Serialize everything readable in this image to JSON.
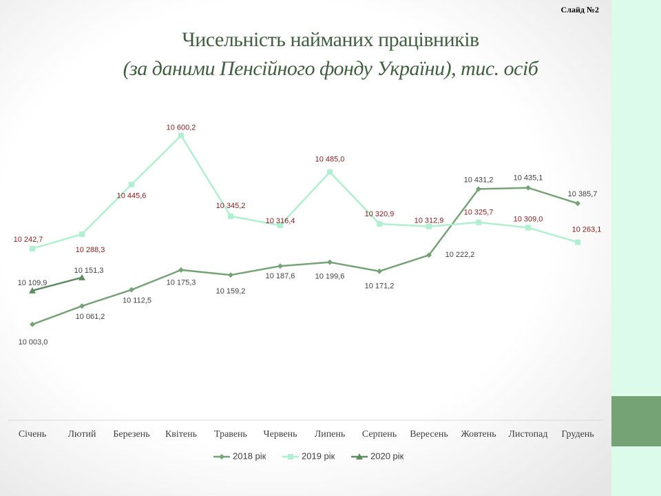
{
  "slide_label": "Слайд №2",
  "chart_data": {
    "type": "line",
    "title": "Чисельність найманих працівників",
    "subtitle": "(за даними Пенсійного фонду України), тис. осіб",
    "categories": [
      "Січень",
      "Лютий",
      "Березень",
      "Квітень",
      "Травень",
      "Червень",
      "Липень",
      "Серпень",
      "Вересень",
      "Жовтень",
      "Листопад",
      "Грудень"
    ],
    "ylim": [
      9700,
      10700
    ],
    "legend": "bottom",
    "series": [
      {
        "name": "2018 рік",
        "color": "#76a376",
        "marker": "diamond",
        "label_color": "#404040",
        "values": [
          10003.0,
          10061.2,
          10112.5,
          10175.3,
          10159.2,
          10187.6,
          10199.6,
          10171.2,
          10222.2,
          10431.2,
          10435.1,
          10385.7
        ],
        "value_labels": [
          "10 003,0",
          "10 061,2",
          "10 112,5",
          "10 175,3",
          "10 159,2",
          "10 187,6",
          "10 199,6",
          "10 171,2",
          "10 222,2",
          "10 431,2",
          "10 435,1",
          "10 385,7"
        ]
      },
      {
        "name": "2019 рік",
        "color": "#aef0cf",
        "marker": "square",
        "label_color": "#8b1a1a",
        "values": [
          10242.7,
          10288.3,
          10445.6,
          10600.2,
          10345.2,
          10316.4,
          10485.0,
          10320.9,
          10312.9,
          10325.7,
          10309.0,
          10263.1
        ],
        "value_labels": [
          "10 242,7",
          "10 288,3",
          "10 445,6",
          "10 600,2",
          "10 345,2",
          "10 316,4",
          "10 485,0",
          "10 320,9",
          "10 312,9",
          "10 325,7",
          "10 309,0",
          "10 263,1"
        ]
      },
      {
        "name": "2020 рік",
        "color": "#5e8c61",
        "marker": "triangle",
        "label_color": "#404040",
        "values": [
          10109.9,
          10151.3,
          null,
          null,
          null,
          null,
          null,
          null,
          null,
          null,
          null,
          null
        ],
        "value_labels": [
          "10 109,9",
          "10 151,3",
          null,
          null,
          null,
          null,
          null,
          null,
          null,
          null,
          null,
          null
        ]
      }
    ]
  }
}
